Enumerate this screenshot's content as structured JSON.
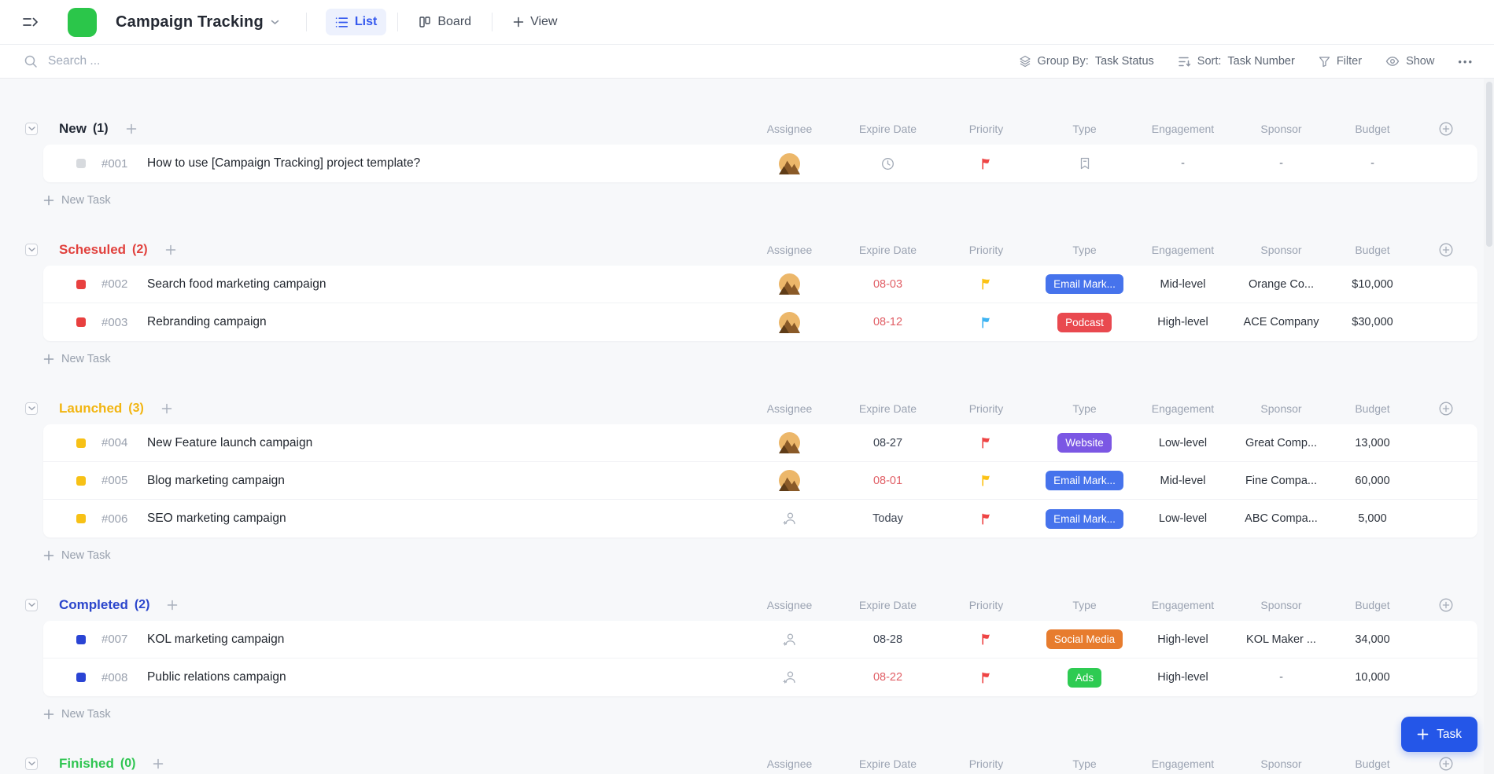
{
  "header": {
    "title": "Campaign Tracking",
    "tabs": {
      "list": "List",
      "board": "Board",
      "view": "View"
    }
  },
  "toolbar": {
    "search_placeholder": "Search ...",
    "group_by_label": "Group By:",
    "group_by_value": "Task Status",
    "sort_label": "Sort:",
    "sort_value": "Task Number",
    "filter_label": "Filter",
    "show_label": "Show",
    "more_label": "•••"
  },
  "columns": [
    "Assignee",
    "Expire Date",
    "Priority",
    "Type",
    "Engagement",
    "Sponsor",
    "Budget"
  ],
  "labels": {
    "new_task": "New Task",
    "add_task": "Task"
  },
  "colors": {
    "accent_blue": "#3559ee",
    "task_button": "#2456e8",
    "page_bg": "#f7f8fa"
  },
  "groups": [
    {
      "name": "New",
      "count": "(1)",
      "color": "#232a36",
      "status_color": "#d7dade",
      "tasks": [
        {
          "id": "#001",
          "title": "How to use [Campaign Tracking] project template?",
          "assignee": "avatar",
          "expire": null,
          "flag": "#ee4545",
          "type": null,
          "engagement": "-",
          "sponsor": "-",
          "budget": "-"
        }
      ]
    },
    {
      "name": "Schesuled",
      "count": "(2)",
      "color": "#e1413d",
      "status_color": "#e8403f",
      "tasks": [
        {
          "id": "#002",
          "title": "Search food marketing campaign",
          "assignee": "avatar",
          "expire": "08-03",
          "expire_color": "#e15f66",
          "flag": "#fcc215",
          "type": "Email Mark...",
          "type_color": "#4673ec",
          "engagement": "Mid-level",
          "sponsor": "Orange Co...",
          "budget": "$10,000"
        },
        {
          "id": "#003",
          "title": "Rebranding campaign",
          "assignee": "avatar",
          "expire": "08-12",
          "expire_color": "#e15f66",
          "flag": "#3eb3f2",
          "type": "Podcast",
          "type_color": "#e9494f",
          "engagement": "High-level",
          "sponsor": "ACE Company",
          "budget": "$30,000"
        }
      ]
    },
    {
      "name": "Launched",
      "count": "(3)",
      "color": "#f2b511",
      "status_color": "#f7c116",
      "tasks": [
        {
          "id": "#004",
          "title": "New Feature launch campaign",
          "assignee": "avatar",
          "expire": "08-27",
          "expire_color": "#3a4250",
          "flag": "#ee4545",
          "type": "Website",
          "type_color": "#7b57e4",
          "engagement": "Low-level",
          "sponsor": "Great Comp...",
          "budget": "13,000"
        },
        {
          "id": "#005",
          "title": "Blog marketing campaign",
          "assignee": "avatar",
          "expire": "08-01",
          "expire_color": "#e15f66",
          "flag": "#fcc215",
          "type": "Email Mark...",
          "type_color": "#4673ec",
          "engagement": "Mid-level",
          "sponsor": "Fine Compa...",
          "budget": "60,000"
        },
        {
          "id": "#006",
          "title": "SEO marketing campaign",
          "assignee": "none",
          "expire": "Today",
          "expire_color": "#3a4250",
          "flag": "#ee4545",
          "type": "Email Mark...",
          "type_color": "#4673ec",
          "engagement": "Low-level",
          "sponsor": "ABC Compa...",
          "budget": "5,000"
        }
      ]
    },
    {
      "name": "Completed",
      "count": "(2)",
      "color": "#2b46cc",
      "status_color": "#2a44d4",
      "tasks": [
        {
          "id": "#007",
          "title": "KOL marketing campaign",
          "assignee": "none",
          "expire": "08-28",
          "expire_color": "#3a4250",
          "flag": "#ee4545",
          "type": "Social Media",
          "type_color": "#e77c2e",
          "engagement": "High-level",
          "sponsor": "KOL Maker ...",
          "budget": "34,000"
        },
        {
          "id": "#008",
          "title": "Public relations campaign",
          "assignee": "none",
          "expire": "08-22",
          "expire_color": "#e15f66",
          "flag": "#ee4545",
          "type": "Ads",
          "type_color": "#2ecb52",
          "engagement": "High-level",
          "sponsor": "-",
          "budget": "10,000"
        }
      ]
    },
    {
      "name": "Finished",
      "count": "(0)",
      "color": "#2fc551",
      "status_color": "#2fc551",
      "partial": true,
      "tasks": []
    }
  ]
}
